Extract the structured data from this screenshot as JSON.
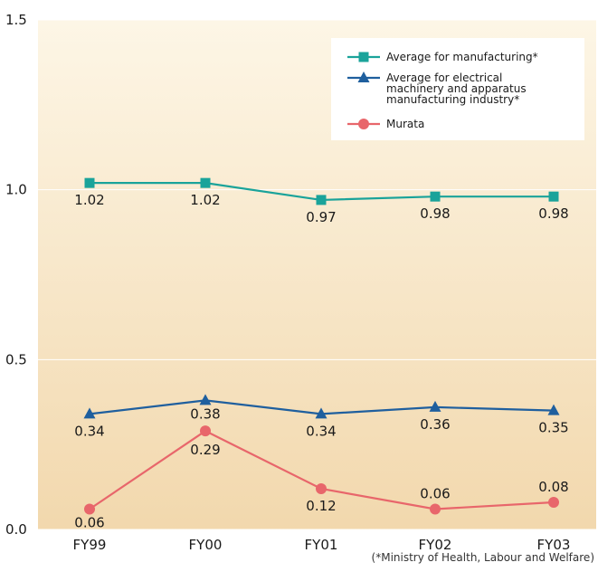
{
  "chart_data": {
    "type": "line",
    "categories": [
      "FY99",
      "FY00",
      "FY01",
      "FY02",
      "FY03"
    ],
    "ylim": [
      0.0,
      1.5
    ],
    "yticks": [
      "0.0",
      "0.5",
      "1.0",
      "1.5"
    ],
    "grid": true,
    "legend_position": "top-right",
    "series": [
      {
        "name": "Average for manufacturing*",
        "color": "#1aa39a",
        "marker": "square",
        "values": [
          1.02,
          1.02,
          0.97,
          0.98,
          0.98
        ],
        "labels": [
          "1.02",
          "1.02",
          "0.97",
          "0.98",
          "0.98"
        ]
      },
      {
        "name": "Average for electrical machinery and apparatus manufacturing industry*",
        "legend_lines": [
          "Average for electrical",
          "machinery and apparatus",
          "manufacturing industry*"
        ],
        "color": "#1f5f9e",
        "marker": "triangle",
        "values": [
          0.34,
          0.38,
          0.34,
          0.36,
          0.35
        ],
        "labels": [
          "0.34",
          "0.38",
          "0.34",
          "0.36",
          "0.35"
        ]
      },
      {
        "name": "Murata",
        "color": "#e8666b",
        "marker": "circle",
        "values": [
          0.06,
          0.29,
          0.12,
          0.06,
          0.08
        ],
        "labels": [
          "0.06",
          "0.29",
          "0.12",
          "0.06",
          "0.08"
        ]
      }
    ],
    "source_note": "(*Ministry of Health, Labour and Welfare)"
  }
}
